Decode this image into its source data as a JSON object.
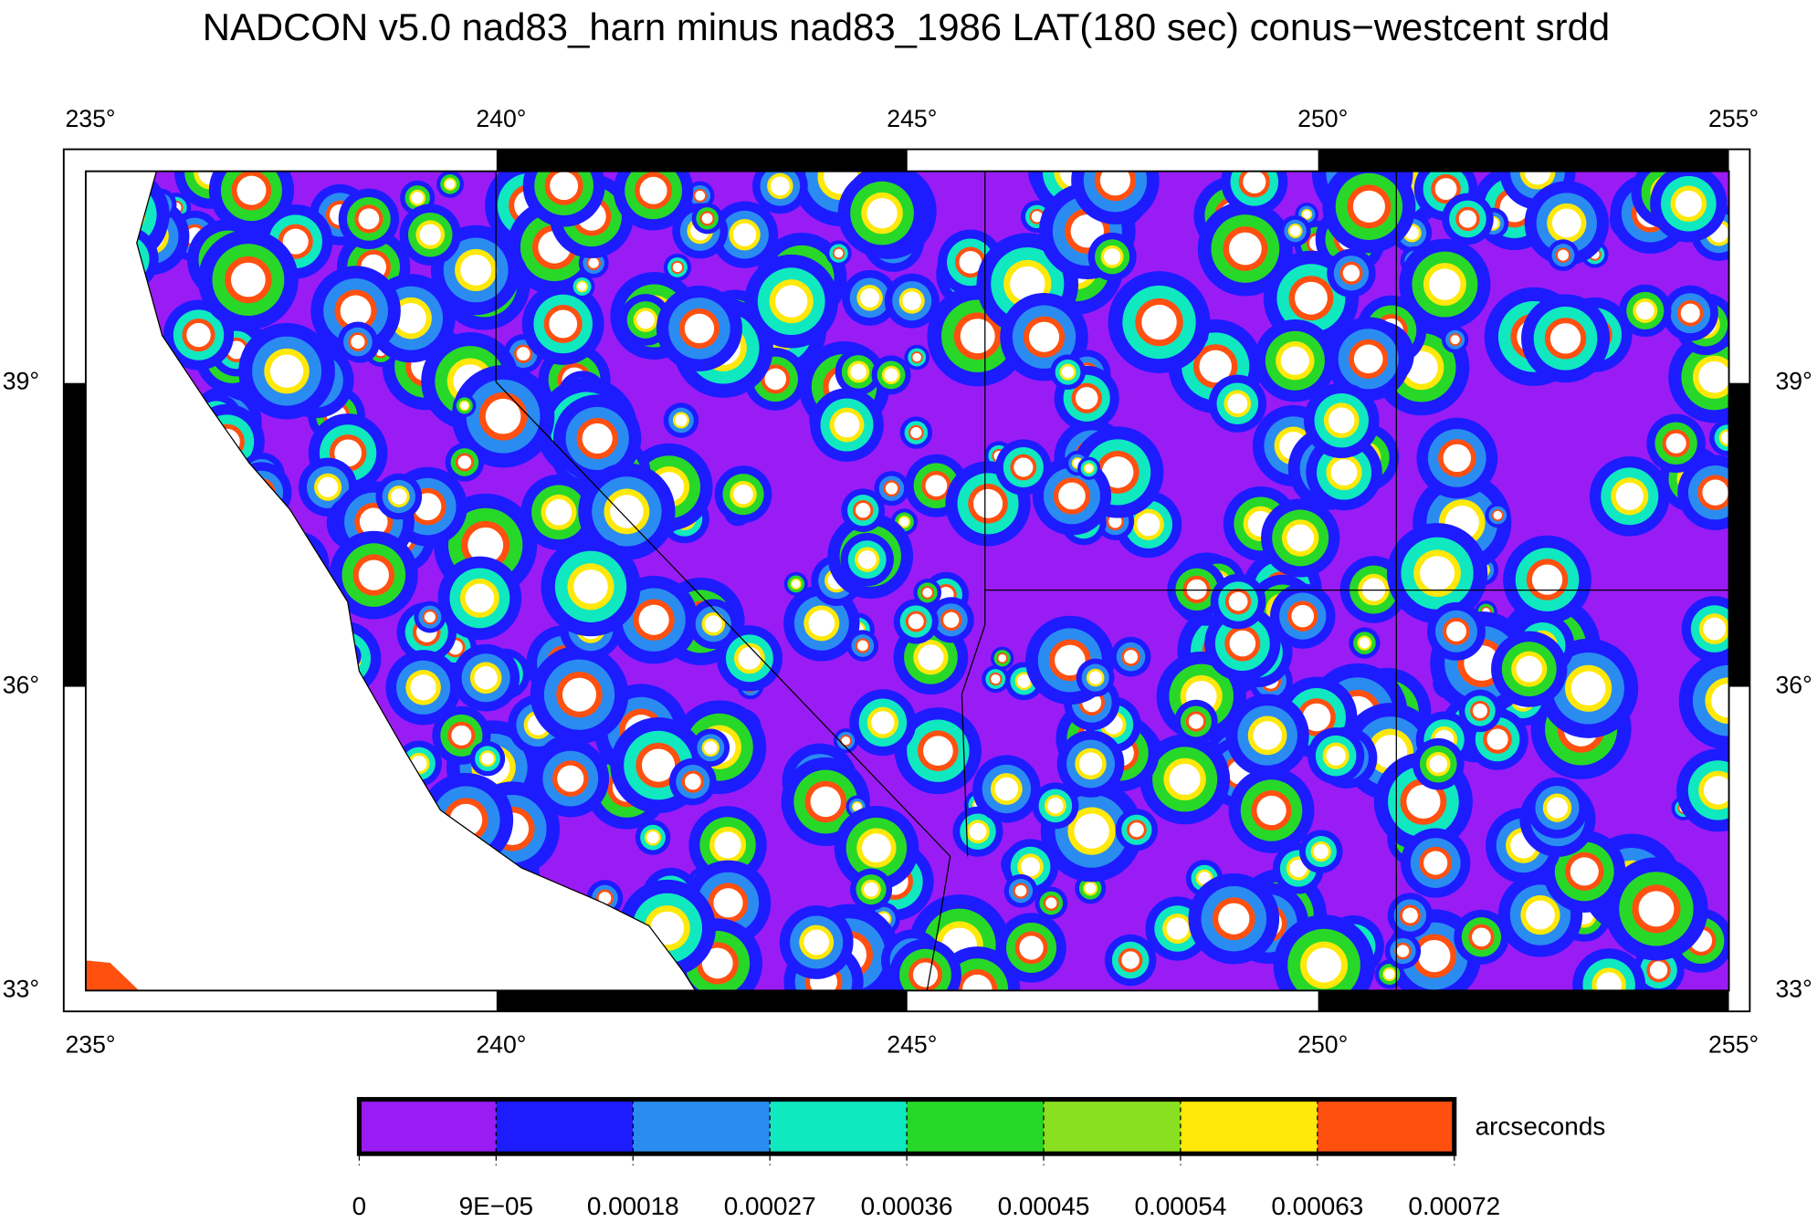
{
  "title": "NADCON v5.0 nad83_harn minus nad83_1986 LAT(180 sec) conus−westcent srdd",
  "map": {
    "lon_labels": [
      "235°",
      "240°",
      "245°",
      "250°",
      "255°"
    ],
    "lat_labels": [
      "33°",
      "36°",
      "39°"
    ]
  },
  "colorbar": {
    "unit": "arcseconds",
    "ticks": [
      0,
      {
        "value": 9e-05,
        "label": "9E−05"
      },
      0.00018,
      0.00027,
      0.00036,
      0.00045,
      0.00054,
      0.00063,
      0.00072
    ],
    "colors": [
      "#9a1cf5",
      "#1c1cff",
      "#2a8cf0",
      "#10e8c0",
      "#28d828",
      "#88e020",
      "#ffe80a",
      "#ff5010"
    ]
  }
}
